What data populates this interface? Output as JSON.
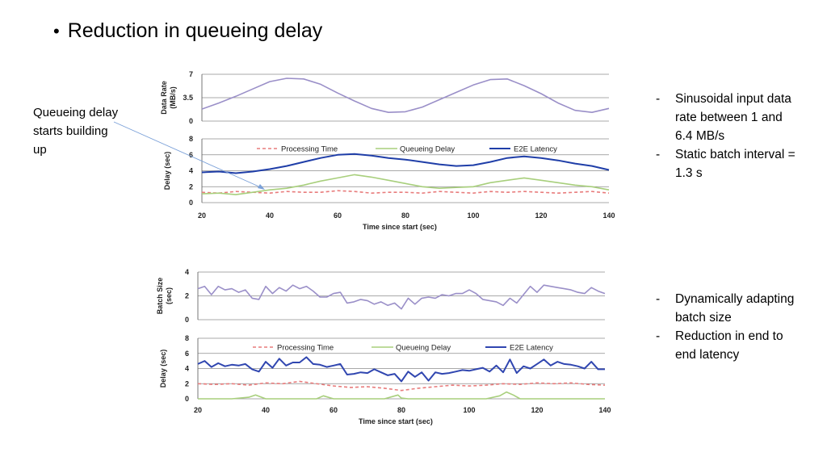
{
  "slide": {
    "title": "Reduction in queueing delay",
    "callout": "Queueing delay starts building up",
    "notes_top": [
      "Sinusoidal input data rate between 1 and 6.4 MB/s",
      "Static batch interval = 1.3 s"
    ],
    "notes_bottom": [
      "Dynamically adapting batch size",
      "Reduction in end to end latency"
    ]
  },
  "colors": {
    "rate": "#9a8fc8",
    "batch": "#9a8fc8",
    "processing": "#e87c7c",
    "queueing": "#a8cf7c",
    "e2e_top": "#1f3ea8",
    "e2e_bottom": "#3046b0",
    "grid": "#8c8c8c",
    "callout_arrow": "#7aa0d8"
  },
  "chart_data": [
    {
      "id": "top-rate",
      "type": "line",
      "ylabel": "Data Rate (MB/s)",
      "ylim": [
        0,
        7
      ],
      "yticks": [
        "0",
        "3.5",
        "7"
      ],
      "xlim": [
        20,
        140
      ],
      "series": [
        {
          "key": "rate",
          "x": [
            20,
            25,
            30,
            35,
            40,
            45,
            50,
            55,
            60,
            65,
            70,
            75,
            80,
            85,
            90,
            95,
            100,
            105,
            110,
            115,
            120,
            125,
            130,
            135,
            140
          ],
          "values": [
            1.8,
            2.7,
            3.7,
            4.8,
            5.9,
            6.4,
            6.3,
            5.5,
            4.2,
            3.0,
            1.9,
            1.3,
            1.4,
            2.1,
            3.2,
            4.3,
            5.4,
            6.2,
            6.3,
            5.3,
            4.1,
            2.7,
            1.6,
            1.3,
            1.9
          ]
        }
      ]
    },
    {
      "id": "top-delay",
      "type": "line",
      "ylabel": "Delay (sec)",
      "xlabel": "Time since start (sec)",
      "ylim": [
        0,
        8
      ],
      "yticks": [
        "0",
        "2",
        "4",
        "6",
        "8"
      ],
      "xlim": [
        20,
        140
      ],
      "xticks": [
        "20",
        "40",
        "60",
        "80",
        "100",
        "120",
        "140"
      ],
      "legend": [
        "Processing Time",
        "Queueing Delay",
        "E2E Latency"
      ],
      "series": [
        {
          "key": "processing",
          "dashed": true,
          "x": [
            20,
            25,
            30,
            35,
            40,
            45,
            50,
            55,
            60,
            65,
            70,
            75,
            80,
            85,
            90,
            95,
            100,
            105,
            110,
            115,
            120,
            125,
            130,
            135,
            140
          ],
          "values": [
            1.3,
            1.2,
            1.4,
            1.3,
            1.2,
            1.4,
            1.3,
            1.3,
            1.5,
            1.4,
            1.2,
            1.3,
            1.3,
            1.2,
            1.4,
            1.3,
            1.2,
            1.4,
            1.3,
            1.4,
            1.3,
            1.2,
            1.3,
            1.4,
            1.2
          ]
        },
        {
          "key": "queueing",
          "x": [
            20,
            25,
            30,
            35,
            40,
            45,
            50,
            55,
            60,
            65,
            70,
            75,
            80,
            85,
            90,
            95,
            100,
            105,
            110,
            115,
            120,
            125,
            130,
            135,
            140
          ],
          "values": [
            1.1,
            1.2,
            1.0,
            1.3,
            1.6,
            1.8,
            2.2,
            2.7,
            3.1,
            3.5,
            3.2,
            2.8,
            2.4,
            2.0,
            1.8,
            1.9,
            2.0,
            2.5,
            2.8,
            3.1,
            2.8,
            2.5,
            2.2,
            2.0,
            1.6
          ]
        },
        {
          "key": "e2e_top",
          "x": [
            20,
            25,
            30,
            35,
            40,
            45,
            50,
            55,
            60,
            65,
            70,
            75,
            80,
            85,
            90,
            95,
            100,
            105,
            110,
            115,
            120,
            125,
            130,
            135,
            140
          ],
          "values": [
            3.8,
            3.9,
            3.7,
            3.9,
            4.2,
            4.6,
            5.1,
            5.6,
            6.0,
            6.1,
            5.9,
            5.6,
            5.4,
            5.1,
            4.8,
            4.6,
            4.7,
            5.1,
            5.6,
            5.8,
            5.6,
            5.3,
            4.9,
            4.6,
            4.1
          ]
        }
      ]
    },
    {
      "id": "bottom-batch",
      "type": "line",
      "ylabel": "Batch Size (sec)",
      "ylim": [
        0,
        4
      ],
      "yticks": [
        "0",
        "2",
        "4"
      ],
      "xlim": [
        20,
        140
      ],
      "series": [
        {
          "key": "batch",
          "x": [
            20,
            22,
            24,
            26,
            28,
            30,
            32,
            34,
            36,
            38,
            40,
            42,
            44,
            46,
            48,
            50,
            52,
            54,
            56,
            58,
            60,
            62,
            64,
            66,
            68,
            70,
            72,
            74,
            76,
            78,
            80,
            82,
            84,
            86,
            88,
            90,
            92,
            94,
            96,
            98,
            100,
            102,
            104,
            106,
            108,
            110,
            112,
            114,
            116,
            118,
            120,
            122,
            124,
            126,
            128,
            130,
            132,
            134,
            136,
            138,
            140
          ],
          "values": [
            2.6,
            2.8,
            2.1,
            2.8,
            2.5,
            2.6,
            2.3,
            2.5,
            1.8,
            1.7,
            2.8,
            2.2,
            2.7,
            2.4,
            2.9,
            2.6,
            2.8,
            2.4,
            1.9,
            1.9,
            2.2,
            2.3,
            1.4,
            1.5,
            1.7,
            1.6,
            1.3,
            1.5,
            1.2,
            1.4,
            0.9,
            1.8,
            1.3,
            1.8,
            1.9,
            1.8,
            2.1,
            2.0,
            2.2,
            2.2,
            2.5,
            2.2,
            1.7,
            1.6,
            1.5,
            1.2,
            1.8,
            1.4,
            2.1,
            2.8,
            2.3,
            2.9,
            2.8,
            2.7,
            2.6,
            2.5,
            2.3,
            2.2,
            2.7,
            2.4,
            2.2
          ]
        }
      ]
    },
    {
      "id": "bottom-delay",
      "type": "line",
      "ylabel": "Delay (sec)",
      "xlabel": "Time since start (sec)",
      "ylim": [
        0,
        8
      ],
      "yticks": [
        "0",
        "2",
        "4",
        "6",
        "8"
      ],
      "xlim": [
        20,
        140
      ],
      "xticks": [
        "20",
        "40",
        "60",
        "80",
        "100",
        "120",
        "140"
      ],
      "legend": [
        "Processing Time",
        "Queueing Delay",
        "E2E Latency"
      ],
      "series": [
        {
          "key": "processing",
          "dashed": true,
          "x": [
            20,
            25,
            30,
            35,
            40,
            45,
            50,
            55,
            60,
            65,
            70,
            75,
            80,
            85,
            90,
            95,
            100,
            105,
            110,
            115,
            120,
            125,
            130,
            135,
            140
          ],
          "values": [
            2.0,
            1.9,
            2.0,
            1.8,
            2.1,
            2.0,
            2.3,
            2.0,
            1.7,
            1.5,
            1.6,
            1.4,
            1.1,
            1.4,
            1.6,
            1.8,
            1.7,
            1.8,
            2.0,
            1.9,
            2.1,
            2.0,
            2.1,
            1.9,
            1.8
          ]
        },
        {
          "key": "queueing",
          "x": [
            20,
            25,
            30,
            35,
            37,
            40,
            45,
            50,
            55,
            57,
            60,
            65,
            70,
            75,
            79,
            80,
            82,
            85,
            90,
            95,
            100,
            105,
            109,
            111,
            113,
            115,
            120,
            125,
            130,
            135,
            140
          ],
          "values": [
            0,
            0,
            0,
            0.2,
            0.5,
            0,
            0,
            0,
            0,
            0.4,
            0,
            0,
            0,
            0,
            0.5,
            0.1,
            0,
            0,
            0,
            0,
            0,
            0,
            0.4,
            0.9,
            0.5,
            0,
            0,
            0,
            0,
            0,
            0
          ]
        },
        {
          "key": "e2e_bottom",
          "x": [
            20,
            22,
            24,
            26,
            28,
            30,
            32,
            34,
            36,
            38,
            40,
            42,
            44,
            46,
            48,
            50,
            52,
            54,
            56,
            58,
            60,
            62,
            64,
            66,
            68,
            70,
            72,
            74,
            76,
            78,
            80,
            82,
            84,
            86,
            88,
            90,
            92,
            94,
            96,
            98,
            100,
            102,
            104,
            106,
            108,
            110,
            112,
            114,
            116,
            118,
            120,
            122,
            124,
            126,
            128,
            130,
            132,
            134,
            136,
            138,
            140
          ],
          "values": [
            4.6,
            5.0,
            4.2,
            4.7,
            4.3,
            4.5,
            4.4,
            4.6,
            3.9,
            3.6,
            4.9,
            4.1,
            5.3,
            4.4,
            4.8,
            4.8,
            5.5,
            4.6,
            4.5,
            4.2,
            4.4,
            4.6,
            3.2,
            3.3,
            3.5,
            3.4,
            3.9,
            3.5,
            3.1,
            3.3,
            2.3,
            3.6,
            2.9,
            3.5,
            2.4,
            3.5,
            3.3,
            3.4,
            3.6,
            3.8,
            3.7,
            3.9,
            4.1,
            3.6,
            4.4,
            3.5,
            5.2,
            3.4,
            4.3,
            4.0,
            4.6,
            5.2,
            4.4,
            4.9,
            4.6,
            4.5,
            4.3,
            4.0,
            4.9,
            3.9,
            3.9
          ]
        }
      ]
    }
  ]
}
